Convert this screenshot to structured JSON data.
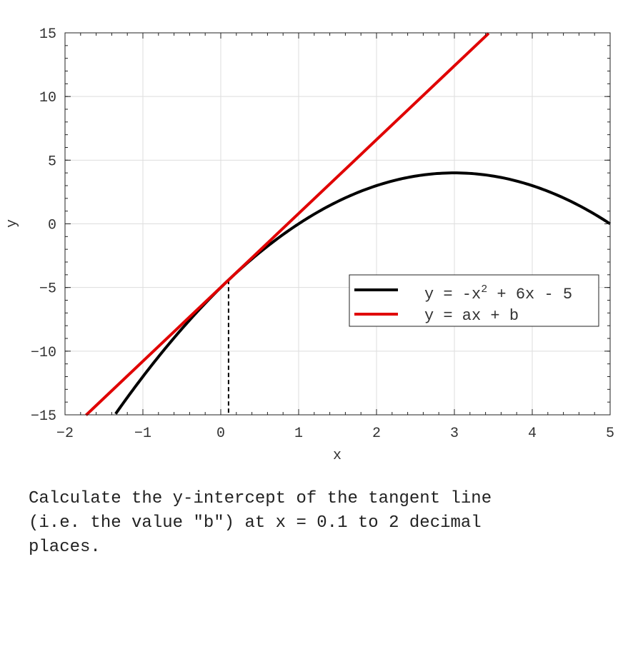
{
  "chart_data": {
    "type": "line",
    "xlabel": "x",
    "ylabel": "y",
    "xlim": [
      -2,
      5
    ],
    "ylim": [
      -15,
      15
    ],
    "xticks": [
      -2,
      -1,
      0,
      1,
      2,
      3,
      4,
      5
    ],
    "yticks": [
      -15,
      -10,
      -5,
      0,
      5,
      10,
      15
    ],
    "xtick_labels": [
      "−2",
      "−1",
      "0",
      "1",
      "2",
      "3",
      "4",
      "5"
    ],
    "ytick_labels": [
      "−15",
      "−10",
      "−5",
      "0",
      "5",
      "10",
      "15"
    ],
    "grid": true,
    "legend_position": "center-right",
    "series": [
      {
        "name": "y = -x^2 + 6x - 5",
        "legend_main": "y = -x",
        "legend_sup": "2",
        "legend_rest": " + 6x - 5",
        "kind": "curve",
        "coefficients": [
          -1,
          6,
          -5
        ],
        "x_start": -1.35,
        "x_end": 5,
        "color": "#000000"
      },
      {
        "name": "y = ax + b",
        "legend_main": "y = ax + b",
        "kind": "line",
        "slope": 5.8,
        "intercept": -4.99,
        "x_start": -1.73,
        "x_end": 3.44,
        "color": "#e00000"
      }
    ],
    "marker": {
      "x": 0.1,
      "y": -4.41,
      "style": "dashed",
      "color": "#000000"
    }
  },
  "question": {
    "text": "Calculate the y-intercept of the tangent line\n(i.e. the value \"b\") at x = 0.1 to 2 decimal\nplaces."
  }
}
